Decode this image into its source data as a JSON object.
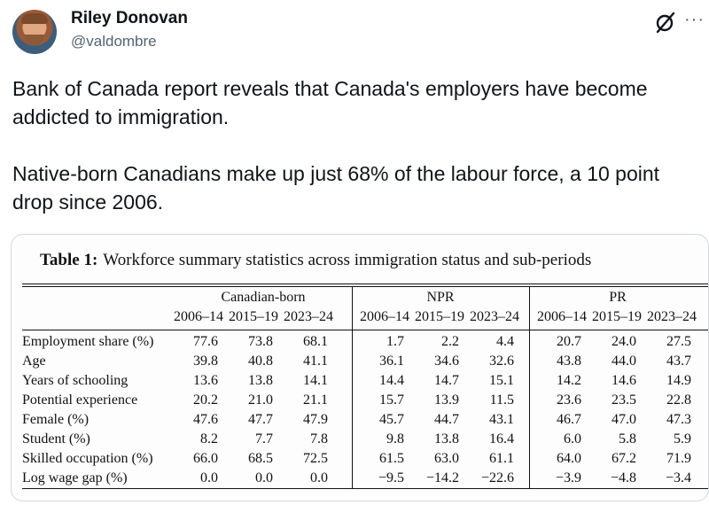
{
  "author": {
    "name": "Riley Donovan",
    "handle": "@valdombre"
  },
  "header_icons": {
    "grok": "grok-icon",
    "more": "more-icon",
    "more_glyph": "···"
  },
  "tweet": {
    "paragraph1": "Bank of Canada report reveals that Canada's employers have become addicted to immigration.",
    "paragraph2": "Native-born Canadians make up just 68% of the labour force, a 10 point drop since 2006."
  },
  "table": {
    "title_bold": "Table 1:",
    "title_rest": "Workforce summary statistics across immigration status and sub-periods",
    "groups": [
      "Canadian-born",
      "NPR",
      "PR"
    ],
    "periods": [
      "2006–14",
      "2015–19",
      "2023–24",
      "2006–14",
      "2015–19",
      "2023–24",
      "2006–14",
      "2015–19",
      "2023–24"
    ],
    "rows": [
      {
        "label": "Employment share (%)",
        "values": [
          "77.6",
          "73.8",
          "68.1",
          "1.7",
          "2.2",
          "4.4",
          "20.7",
          "24.0",
          "27.5"
        ]
      },
      {
        "label": "Age",
        "values": [
          "39.8",
          "40.8",
          "41.1",
          "36.1",
          "34.6",
          "32.6",
          "43.8",
          "44.0",
          "43.7"
        ]
      },
      {
        "label": "Years of schooling",
        "values": [
          "13.6",
          "13.8",
          "14.1",
          "14.4",
          "14.7",
          "15.1",
          "14.2",
          "14.6",
          "14.9"
        ]
      },
      {
        "label": "Potential experience",
        "values": [
          "20.2",
          "21.0",
          "21.1",
          "15.7",
          "13.9",
          "11.5",
          "23.6",
          "23.5",
          "22.8"
        ]
      },
      {
        "label": "Female (%)",
        "values": [
          "47.6",
          "47.7",
          "47.9",
          "45.7",
          "44.7",
          "43.1",
          "46.7",
          "47.0",
          "47.3"
        ]
      },
      {
        "label": "Student (%)",
        "values": [
          "8.2",
          "7.7",
          "7.8",
          "9.8",
          "13.8",
          "16.4",
          "6.0",
          "5.8",
          "5.9"
        ]
      },
      {
        "label": "Skilled occupation (%)",
        "values": [
          "66.0",
          "68.5",
          "72.5",
          "61.5",
          "63.0",
          "61.1",
          "64.0",
          "67.2",
          "71.9"
        ]
      },
      {
        "label": "Log wage gap (%)",
        "values": [
          "0.0",
          "0.0",
          "0.0",
          "−9.5",
          "−14.2",
          "−22.6",
          "−3.9",
          "−4.8",
          "−3.4"
        ]
      }
    ]
  }
}
